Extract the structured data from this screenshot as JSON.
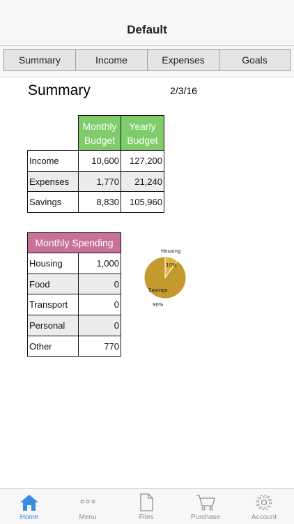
{
  "header": {
    "title": "Default"
  },
  "tabs": [
    {
      "label": "Summary"
    },
    {
      "label": "Income"
    },
    {
      "label": "Expenses"
    },
    {
      "label": "Goals"
    }
  ],
  "summary": {
    "heading": "Summary",
    "date": "2/3/16",
    "budget_table": {
      "col_headers": [
        "Monthly\nBudget",
        "Yearly\nBudget"
      ],
      "rows": [
        {
          "label": "Income",
          "monthly": "10,600",
          "yearly": "127,200"
        },
        {
          "label": "Expenses",
          "monthly": "1,770",
          "yearly": "21,240"
        },
        {
          "label": "Savings",
          "monthly": "8,830",
          "yearly": "105,960"
        }
      ]
    },
    "spending_table": {
      "header": "Monthly Spending",
      "rows": [
        {
          "label": "Housing",
          "value": "1,000"
        },
        {
          "label": "Food",
          "value": "0"
        },
        {
          "label": "Transport",
          "value": "0"
        },
        {
          "label": "Personal",
          "value": "0"
        },
        {
          "label": "Other",
          "value": "770"
        }
      ]
    }
  },
  "chart_data": {
    "type": "pie",
    "slices": [
      {
        "name": "Housing",
        "value": 10,
        "label": "10%",
        "color": "#e0b640"
      },
      {
        "name": "Savings",
        "value": 90,
        "label": "90%",
        "color": "#c29a2e"
      }
    ]
  },
  "bottom_nav": [
    {
      "label": "Home",
      "icon": "home-icon",
      "active": true
    },
    {
      "label": "Menu",
      "icon": "menu-dots-icon",
      "active": false
    },
    {
      "label": "Files",
      "icon": "file-icon",
      "active": false
    },
    {
      "label": "Purchase",
      "icon": "cart-icon",
      "active": false
    },
    {
      "label": "Account",
      "icon": "gear-icon",
      "active": false
    }
  ],
  "colors": {
    "accent": "#3a8be0",
    "budget_header": "#7fcc6a",
    "spending_header": "#c8729a"
  }
}
